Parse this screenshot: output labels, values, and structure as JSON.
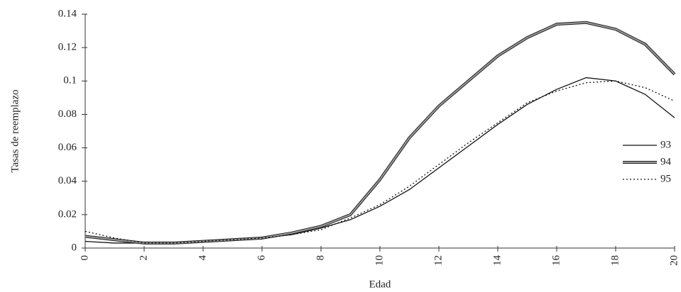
{
  "chart_data": {
    "type": "line",
    "x_label": "Edad",
    "y_label": "Tasas de reemplazo",
    "x": [
      0,
      1,
      2,
      3,
      4,
      5,
      6,
      7,
      8,
      9,
      10,
      11,
      12,
      13,
      14,
      15,
      16,
      17,
      18,
      19,
      20
    ],
    "series": [
      {
        "name": "93",
        "color": "#111111",
        "style": "solid",
        "values": [
          0.004,
          0.003,
          0.003,
          0.003,
          0.004,
          0.0045,
          0.006,
          0.008,
          0.012,
          0.017,
          0.025,
          0.035,
          0.048,
          0.061,
          0.074,
          0.086,
          0.095,
          0.102,
          0.1,
          0.092,
          0.078
        ]
      },
      {
        "name": "94",
        "color": "#999999",
        "style": "double",
        "values": [
          0.007,
          0.005,
          0.003,
          0.003,
          0.004,
          0.005,
          0.006,
          0.009,
          0.013,
          0.02,
          0.041,
          0.066,
          0.085,
          0.1,
          0.115,
          0.126,
          0.134,
          0.135,
          0.131,
          0.122,
          0.104
        ]
      },
      {
        "name": "95",
        "color": "#111111",
        "style": "dotted",
        "values": [
          0.01,
          0.006,
          0.003,
          0.003,
          0.004,
          0.005,
          0.006,
          0.008,
          0.011,
          0.018,
          0.026,
          0.037,
          0.05,
          0.063,
          0.075,
          0.087,
          0.094,
          0.099,
          0.1,
          0.096,
          0.088
        ]
      }
    ],
    "xlim": [
      0,
      20
    ],
    "xticks": [
      0,
      2,
      4,
      6,
      8,
      10,
      12,
      14,
      16,
      18,
      20
    ],
    "ylim": [
      0,
      0.14
    ],
    "yticks": [
      0,
      0.02,
      0.04,
      0.06,
      0.08,
      0.1,
      0.12,
      0.14
    ],
    "grid": false,
    "legend": "right"
  }
}
